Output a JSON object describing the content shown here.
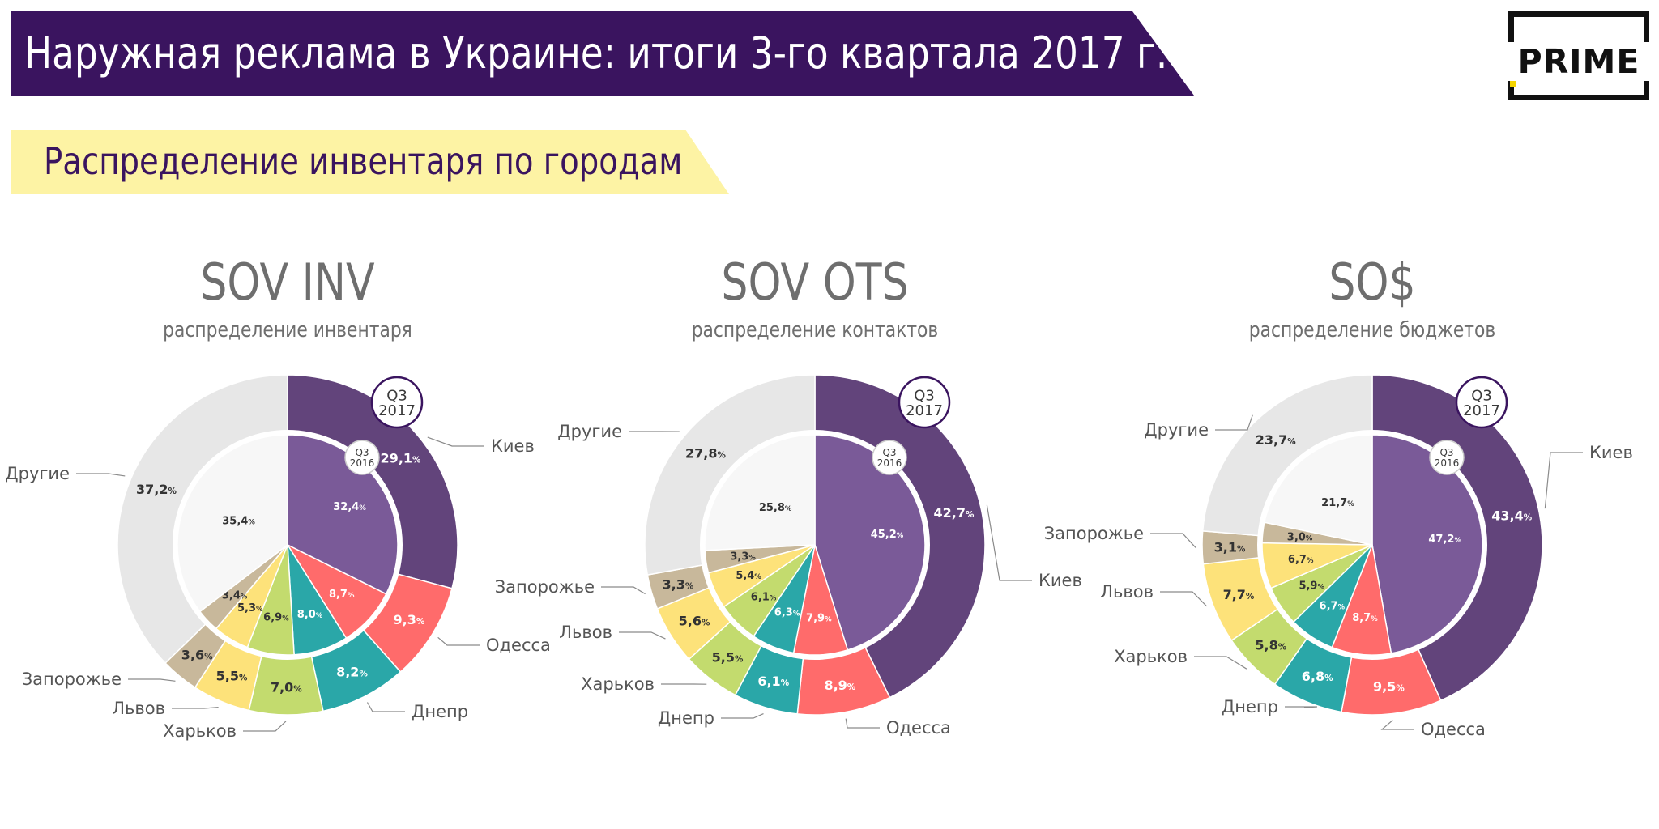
{
  "header": {
    "title": "Наружная реклама в Украине: итоги 3-го квартала 2017 г.",
    "subtitle": "Распределение инвентаря по городам"
  },
  "logo": {
    "text": "PRIME"
  },
  "colors": {
    "header_bg": "#3a145f",
    "subheader_bg": "#fdf3a4",
    "Киев_outer": "#62447b",
    "Киев_inner": "#7a5a98",
    "Одесса": "#ff6b6b",
    "Днепр": "#2aa7a8",
    "Харьков": "#c3db6e",
    "Львов": "#fde27a",
    "Запорожье": "#c8b89b",
    "Другие": "#e7e7e7"
  },
  "chart_data": [
    {
      "type": "pie",
      "title": "SOV INV",
      "subtitle": "распределение инвентаря",
      "outer_label": "Q3 2017",
      "inner_label": "Q3 2016",
      "categories": [
        "Киев",
        "Одесса",
        "Днепр",
        "Харьков",
        "Львов",
        "Запорожье",
        "Другие"
      ],
      "series": [
        {
          "name": "Q3 2017",
          "values": [
            29.1,
            9.3,
            8.2,
            7.0,
            5.5,
            3.6,
            37.2
          ]
        },
        {
          "name": "Q3 2016",
          "values": [
            32.4,
            8.7,
            8.0,
            6.9,
            5.3,
            3.4,
            35.4
          ]
        }
      ]
    },
    {
      "type": "pie",
      "title": "SOV OTS",
      "subtitle": "распределение контактов",
      "outer_label": "Q3 2017",
      "inner_label": "Q3 2016",
      "categories": [
        "Киев",
        "Одесса",
        "Днепр",
        "Харьков",
        "Львов",
        "Запорожье",
        "Другие"
      ],
      "series": [
        {
          "name": "Q3 2017",
          "values": [
            42.7,
            8.9,
            6.1,
            5.5,
            5.6,
            3.3,
            27.8
          ]
        },
        {
          "name": "Q3 2016",
          "values": [
            45.2,
            7.9,
            6.3,
            6.1,
            5.4,
            3.3,
            25.8
          ]
        }
      ]
    },
    {
      "type": "pie",
      "title": "SO$",
      "subtitle": "распределение бюджетов",
      "outer_label": "Q3 2017",
      "inner_label": "Q3 2016",
      "categories": [
        "Киев",
        "Одесса",
        "Днепр",
        "Харьков",
        "Львов",
        "Запорожье",
        "Другие"
      ],
      "series": [
        {
          "name": "Q3 2017",
          "values": [
            43.4,
            9.5,
            6.8,
            5.8,
            7.7,
            3.1,
            23.7
          ]
        },
        {
          "name": "Q3 2016",
          "values": [
            47.2,
            8.7,
            6.7,
            5.9,
            6.7,
            3.0,
            21.7
          ]
        }
      ]
    }
  ]
}
